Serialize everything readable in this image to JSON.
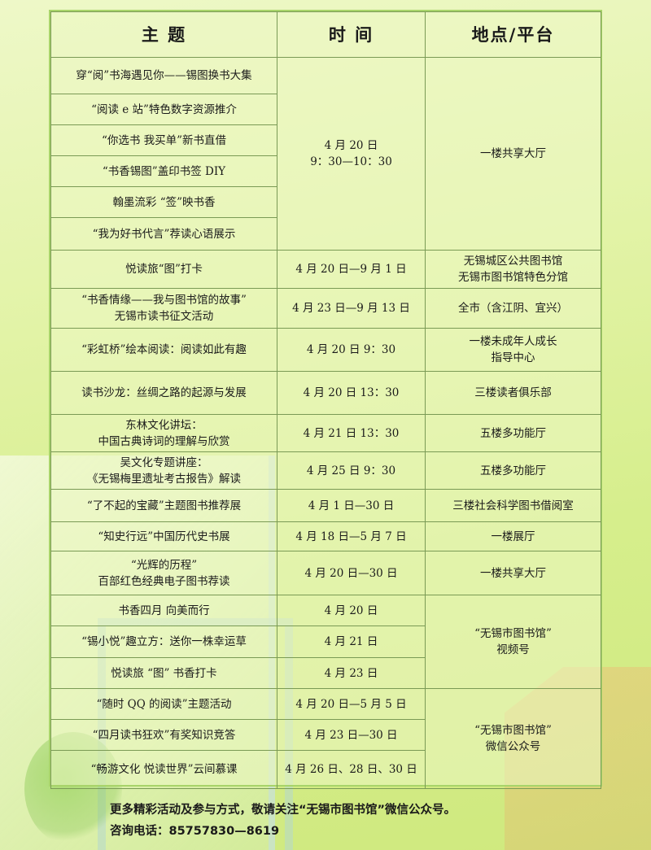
{
  "header": {
    "theme": "主  题",
    "time": "时  间",
    "place": "地点/平台"
  },
  "group1": {
    "topics": [
      "穿“阅”书海遇见你——锡图换书大集",
      "“阅读 e 站”特色数字资源推介",
      "“你选书  我买单”新书直借",
      "“书香锡图”盖印书签 DIY",
      "翰墨流彩 “签”映书香",
      "“我为好书代言”荐读心语展示"
    ],
    "time_line1": "4 月 20 日",
    "time_line2": "9：30—10：30",
    "place": "一楼共享大厅"
  },
  "rows": [
    {
      "topic_l1": "悦读旅“图”打卡",
      "topic_l2": "",
      "time": "4 月 20 日—9 月 1 日",
      "place_l1": "无锡城区公共图书馆",
      "place_l2": "无锡市图书馆特色分馆"
    },
    {
      "topic_l1": "“书香情缘——我与图书馆的故事”",
      "topic_l2": "无锡市读书征文活动",
      "time": "4 月 23 日—9 月 13 日",
      "place_l1": "全市（含江阴、宜兴）",
      "place_l2": ""
    },
    {
      "topic_l1": "“彩虹桥”绘本阅读：阅读如此有趣",
      "topic_l2": "",
      "time": "4 月 20 日 9：30",
      "place_l1": "一楼未成年人成长",
      "place_l2": "指导中心"
    },
    {
      "topic_l1": "读书沙龙：丝绸之路的起源与发展",
      "topic_l2": "",
      "time": "4 月 20 日 13：30",
      "place_l1": "三楼读者俱乐部",
      "place_l2": ""
    },
    {
      "topic_l1": "东林文化讲坛：",
      "topic_l2": "中国古典诗词的理解与欣赏",
      "time": "4 月 21 日 13：30",
      "place_l1": "五楼多功能厅",
      "place_l2": ""
    },
    {
      "topic_l1": "吴文化专题讲座：",
      "topic_l2": "《无锡梅里遗址考古报告》解读",
      "time": "4 月 25 日 9：30",
      "place_l1": "五楼多功能厅",
      "place_l2": ""
    },
    {
      "topic_l1": "“了不起的宝藏”主题图书推荐展",
      "topic_l2": "",
      "time": "4 月 1 日—30 日",
      "place_l1": "三楼社会科学图书借阅室",
      "place_l2": ""
    },
    {
      "topic_l1": "“知史行远”中国历代史书展",
      "topic_l2": "",
      "time": "4 月 18 日—5 月 7 日",
      "place_l1": "一楼展厅",
      "place_l2": ""
    },
    {
      "topic_l1": "“光辉的历程”",
      "topic_l2": "百部红色经典电子图书荐读",
      "time": "4 月 20 日—30 日",
      "place_l1": "一楼共享大厅",
      "place_l2": ""
    }
  ],
  "group2": {
    "rows": [
      {
        "topic": "书香四月  向美而行",
        "time": "4 月 20 日"
      },
      {
        "topic": "“锡小悦”趣立方：送你一株幸运草",
        "time": "4 月 21 日"
      },
      {
        "topic": "悦读旅 “图”  书香打卡",
        "time": "4 月 23 日"
      }
    ],
    "place_l1": "“无锡市图书馆”",
    "place_l2": "视频号"
  },
  "group3": {
    "rows": [
      {
        "topic": "“随时 QQ 的阅读”主题活动",
        "time": "4 月 20 日—5 月 5 日"
      },
      {
        "topic": "“四月读书狂欢”有奖知识竞答",
        "time": "4 月 23 日—30 日"
      },
      {
        "topic": "“畅游文化  悦读世界”云间慕课",
        "time": "4 月 26 日、28 日、30 日"
      }
    ],
    "place_l1": "“无锡市图书馆”",
    "place_l2": "微信公众号"
  },
  "footer": {
    "line1": "更多精彩活动及参与方式，敬请关注“无锡市图书馆”微信公众号。",
    "line2": "咨询电话：85757830—8619"
  }
}
